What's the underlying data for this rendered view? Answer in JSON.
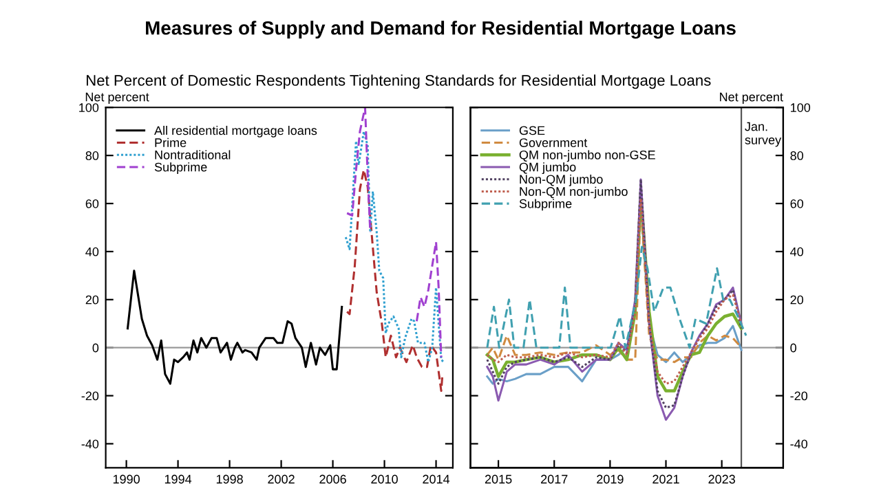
{
  "chart_data": [
    {
      "type": "line",
      "title": "Measures of Supply and Demand for Residential Mortgage Loans",
      "subtitle": "Net Percent of Domestic Respondents Tightening Standards for Residential Mortgage Loans",
      "ylabel": "Net percent",
      "xlim": [
        1988.4,
        2015.3
      ],
      "xticks": [
        1990,
        1994,
        1998,
        2002,
        2006,
        2010,
        2014
      ],
      "ylim": [
        -50,
        100
      ],
      "yticks": [
        -40,
        -20,
        0,
        20,
        40,
        60,
        80,
        100
      ],
      "legend": "top left",
      "grid": false,
      "ref_lines": [
        {
          "axis": "y",
          "value": 0,
          "color": "#999999"
        }
      ],
      "series": [
        {
          "name": "All residential mortgage loans",
          "color": "#000000",
          "line_style": "solid",
          "x": [
            1990.1,
            1990.6,
            1991.2,
            1991.6,
            1992.0,
            1992.4,
            1992.7,
            1993.0,
            1993.4,
            1993.7,
            1994.0,
            1994.4,
            1994.7,
            1994.9,
            1995.2,
            1995.5,
            1995.8,
            1996.2,
            1996.6,
            1997.0,
            1997.3,
            1997.8,
            1998.1,
            1998.4,
            1998.6,
            1999.0,
            1999.2,
            1999.7,
            2000.1,
            2000.3,
            2000.8,
            2001.4,
            2001.7,
            2002.1,
            2002.5,
            2002.8,
            2003.1,
            2003.6,
            2003.9,
            2004.3,
            2004.7,
            2005.0,
            2005.4,
            2005.8,
            2006.0,
            2006.3,
            2006.7
          ],
          "values": [
            8,
            32,
            12,
            5,
            1,
            -5,
            3,
            -11,
            -15,
            -5,
            -6,
            -4,
            -2,
            -5,
            3,
            -2,
            4,
            0,
            4,
            4,
            -2,
            2,
            -5,
            0,
            2,
            -2,
            -1,
            -2,
            -5,
            0,
            4,
            4,
            2,
            2,
            11,
            10,
            4,
            0,
            -8,
            2,
            -7,
            0,
            -3,
            1,
            -9,
            -9,
            17
          ]
        },
        {
          "name": "Prime",
          "color": "#b03030",
          "line_style": "dashed",
          "x": [
            2007.1,
            2007.3,
            2007.7,
            2008.1,
            2008.4,
            2008.7,
            2009.0,
            2009.4,
            2009.8,
            2010.1,
            2010.5,
            2010.9,
            2011.2,
            2011.7,
            2012.2,
            2012.5,
            2012.9,
            2013.3,
            2013.6,
            2014.0,
            2014.4,
            2014.5
          ],
          "values": [
            15,
            14,
            34,
            66,
            74,
            67,
            48,
            23,
            10,
            -4,
            5,
            -4,
            0,
            -6,
            1,
            -4,
            -8,
            -8,
            1,
            -2,
            -18,
            -11
          ]
        },
        {
          "name": "Nontraditional",
          "color": "#30a0d0",
          "line_style": "dotted",
          "x": [
            2007.0,
            2007.3,
            2007.8,
            2008.0,
            2008.4,
            2008.7,
            2008.9,
            2009.1,
            2009.4,
            2009.6,
            2009.9,
            2010.1,
            2010.3,
            2010.7,
            2011.1,
            2011.3,
            2011.6,
            2012.1,
            2012.3,
            2012.6,
            2013.1,
            2013.4,
            2013.7,
            2014.0,
            2014.4,
            2014.6
          ],
          "values": [
            46,
            41,
            86,
            76,
            90,
            84,
            48,
            65,
            48,
            32,
            29,
            6,
            10,
            13,
            8,
            -4,
            4,
            12,
            11,
            2,
            2,
            -6,
            0,
            25,
            -5,
            -6
          ]
        },
        {
          "name": "Subprime",
          "color": "#a040d0",
          "line_style": "dashed",
          "x": [
            2007.1,
            2007.5,
            2007.8,
            2008.1,
            2008.5,
            2008.7,
            2008.9,
            2010.7,
            2012.5,
            2012.8,
            2013.1,
            2013.4,
            2014.0,
            2014.2,
            2014.4
          ],
          "values": [
            56,
            55,
            74,
            90,
            100,
            72,
            48,
            null,
            11,
            21,
            17,
            24,
            44,
            25,
            -4
          ]
        }
      ]
    },
    {
      "type": "line",
      "y2label": "Net percent",
      "xlim": [
        2014.0,
        2025.2
      ],
      "xticks": [
        2015,
        2017,
        2019,
        2021,
        2023
      ],
      "y2lim": [
        -50,
        100
      ],
      "y2ticks": [
        -40,
        -20,
        0,
        20,
        40,
        60,
        80,
        100
      ],
      "legend": "top left",
      "grid": false,
      "ref_lines": [
        {
          "axis": "y2",
          "value": 0,
          "color": "#999999"
        },
        {
          "axis": "x",
          "value": 2023.7,
          "label": "Jan.\nsurvey",
          "color": "#555555"
        }
      ],
      "x": [
        2014.6,
        2014.8,
        2015.0,
        2015.3,
        2015.6,
        2016.0,
        2016.5,
        2017.0,
        2017.5,
        2018.0,
        2018.5,
        2019.0,
        2019.3,
        2019.6,
        2019.9,
        2020.1,
        2020.4,
        2020.7,
        2021.0,
        2021.3,
        2021.6,
        2021.9,
        2022.2,
        2022.5,
        2022.8,
        2023.1,
        2023.4,
        2023.7
      ],
      "series": [
        {
          "name": "GSE",
          "color": "#6a9fc8",
          "line_style": "solid",
          "axis": "y2",
          "values": [
            -12,
            -15,
            -13,
            -14,
            -13,
            -11,
            -11,
            -8,
            -8,
            -14,
            -5,
            -5,
            -3,
            0,
            15,
            60,
            10,
            -3,
            -6,
            -2,
            -6,
            -3,
            1,
            2,
            2,
            4,
            9,
            -1
          ]
        },
        {
          "name": "Government",
          "color": "#d08a40",
          "line_style": "dashed",
          "axis": "y2",
          "values": [
            -3,
            0,
            -5,
            5,
            -3,
            -3,
            -2,
            -3,
            -2,
            -2,
            1,
            -3,
            -1,
            -5,
            -5,
            60,
            5,
            -5,
            -5,
            -6,
            -4,
            -4,
            2,
            5,
            3,
            5,
            4,
            0
          ]
        },
        {
          "name": "QM non-jumbo non-GSE",
          "color": "#7ab030",
          "line_style": "solid",
          "axis": "y2",
          "values": [
            -3,
            -5,
            -12,
            -6,
            -6,
            -5,
            -4,
            -6,
            -5,
            -3,
            -3,
            -5,
            0,
            -5,
            15,
            65,
            15,
            -12,
            -18,
            -18,
            -10,
            -3,
            -2,
            5,
            10,
            13,
            14,
            8
          ]
        },
        {
          "name": "QM jumbo",
          "color": "#8a5ab0",
          "line_style": "solid",
          "axis": "y2",
          "values": [
            -8,
            -12,
            -22,
            -10,
            -7,
            -7,
            -5,
            -7,
            -3,
            -10,
            -5,
            -5,
            2,
            -1,
            20,
            70,
            10,
            -20,
            -30,
            -25,
            -12,
            -2,
            5,
            10,
            18,
            20,
            25,
            10
          ]
        },
        {
          "name": "Non-QM jumbo",
          "color": "#504060",
          "line_style": "dotted",
          "axis": "y2",
          "values": [
            -5,
            -10,
            -15,
            -8,
            -6,
            -5,
            -4,
            -6,
            -4,
            -8,
            -4,
            -5,
            1,
            -2,
            18,
            70,
            10,
            -18,
            -25,
            -24,
            -12,
            -2,
            4,
            10,
            17,
            20,
            24,
            8
          ]
        },
        {
          "name": "Non-QM non-jumbo",
          "color": "#c06050",
          "line_style": "dotted",
          "axis": "y2",
          "values": [
            -3,
            -5,
            -6,
            -3,
            -4,
            -4,
            -3,
            -4,
            -2,
            -4,
            -3,
            -4,
            2,
            -3,
            15,
            62,
            10,
            -10,
            -15,
            -14,
            -8,
            -2,
            4,
            8,
            15,
            20,
            22,
            10
          ]
        },
        {
          "name": "Subprime",
          "color": "#40a0b0",
          "line_style": "dashed",
          "axis": "y2",
          "x": [
            2014.6,
            2014.84,
            2015.03,
            2015.38,
            2015.57,
            2015.9,
            2016.12,
            2016.36,
            2017.18,
            2017.38,
            2017.58,
            2019.02,
            2019.35,
            2019.55,
            2019.93,
            2020.14,
            2020.34,
            2020.58,
            2020.91,
            2021.16,
            2021.49,
            2021.85,
            2022.06,
            2022.44,
            2022.83,
            2023.05,
            2023.29,
            2023.62,
            2023.87
          ],
          "values": [
            0,
            17,
            0,
            20,
            0,
            0,
            20,
            0,
            0,
            25,
            0,
            0,
            13,
            0,
            20,
            42,
            33,
            15,
            25,
            25,
            12,
            0,
            12,
            10,
            33,
            20,
            20,
            12,
            5
          ]
        }
      ]
    }
  ]
}
